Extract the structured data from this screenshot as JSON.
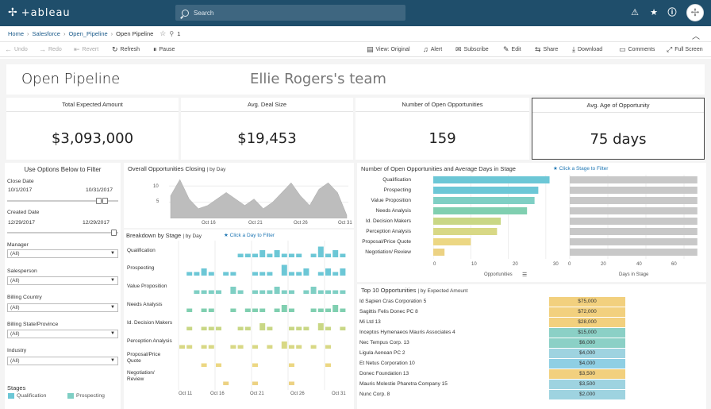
{
  "app": {
    "logo_text": "+ableau"
  },
  "topbar": {
    "search_placeholder": "Search"
  },
  "breadcrumb": {
    "home": "Home",
    "project": "Salesforce",
    "workbook": "Open_Pipeline",
    "view": "Open Pipeline",
    "fav_count": "1"
  },
  "toolbar": {
    "undo": "Undo",
    "redo": "Redo",
    "revert": "Revert",
    "refresh": "Refresh",
    "pause": "Pause",
    "view": "View: Original",
    "alert": "Alert",
    "subscribe": "Subscribe",
    "edit": "Edit",
    "share": "Share",
    "download": "Download",
    "comments": "Comments",
    "fullscreen": "Full Screen"
  },
  "dashboard": {
    "title": "Open Pipeline",
    "team": "Ellie Rogers's team"
  },
  "kpis": [
    {
      "label": "Total Expected Amount",
      "value": "$3,093,000"
    },
    {
      "label": "Avg. Deal Size",
      "value": "$19,453"
    },
    {
      "label": "Number of Open Opportunities",
      "value": "159"
    },
    {
      "label": "Avg. Age of Opportunity",
      "value": "75 days"
    }
  ],
  "filters": {
    "title": "Use Options Below to Filter",
    "close_date": {
      "label": "Close Date",
      "start": "10/1/2017",
      "end": "10/31/2017"
    },
    "created_date": {
      "label": "Created Date",
      "start": "12/29/2017",
      "end": "12/29/2017"
    },
    "manager": {
      "label": "Manager",
      "value": "(All)"
    },
    "salesperson": {
      "label": "Salesperson",
      "value": "(All)"
    },
    "billing_country": {
      "label": "Billing Country",
      "value": "(All)"
    },
    "billing_state": {
      "label": "Billing State/Province",
      "value": "(All)"
    },
    "industry": {
      "label": "Industry",
      "value": "(All)"
    },
    "stages_label": "Stages",
    "stage_legend": [
      "Qualification",
      "Prospecting"
    ]
  },
  "closing_chart": {
    "title": "Overall Opportunities Closing",
    "by": "| by Day",
    "yticks": [
      "10",
      "5"
    ],
    "xticks": [
      "Oct 16",
      "Oct 21",
      "Oct 26",
      "Oct 31"
    ]
  },
  "breakdown": {
    "title": "Breakdown by Stage",
    "by": "| by Day",
    "hint": "Click a Day to Filter",
    "stages": [
      "Qualification",
      "Prospecting",
      "Value Proposition",
      "Needs Analysis",
      "Id. Decision Makers",
      "Perception Analysis",
      "Proposal/Price Quote",
      "Negotiation/ Review"
    ],
    "xticks": [
      "Oct 11",
      "Oct 16",
      "Oct 21",
      "Oct 26",
      "Oct 31"
    ]
  },
  "stage_chart": {
    "title": "Number of Open Opportunities and Average Days in Stage",
    "hint": "Click a Stage to Filter",
    "opp_axis_label": "Opportunities",
    "days_axis_label": "Days in Stage",
    "opp_ticks": [
      "0",
      "10",
      "20",
      "30"
    ],
    "days_ticks": [
      "0",
      "20",
      "40",
      "60"
    ]
  },
  "top10": {
    "title": "Top 10 Opportunities",
    "by": "| by Expected Amount",
    "rows": [
      {
        "name": "Id Sapien Cras Corporation 5",
        "amount": "$75,000"
      },
      {
        "name": "Sagittis Felis Donec PC 8",
        "amount": "$72,000"
      },
      {
        "name": "Mi Ltd 13",
        "amount": "$28,000"
      },
      {
        "name": "Inceptos Hymenaeos Mauris Associates 4",
        "amount": "$15,000"
      },
      {
        "name": "Nec Tempus Corp. 13",
        "amount": "$6,000"
      },
      {
        "name": "Ligula Aenean PC 2",
        "amount": "$4,000"
      },
      {
        "name": "Et Netus Corporation 10",
        "amount": "$4,000"
      },
      {
        "name": "Donec Foundation 13",
        "amount": "$3,500"
      },
      {
        "name": "Mauris Molestie Pharetra Company 15",
        "amount": "$3,500"
      },
      {
        "name": "Nunc Corp. 8",
        "amount": "$2,000"
      }
    ]
  },
  "chart_data": [
    {
      "type": "area",
      "title": "Overall Opportunities Closing",
      "xlabel": "",
      "ylabel": "",
      "x": [
        "Oct 12",
        "Oct 13",
        "Oct 14",
        "Oct 15",
        "Oct 16",
        "Oct 17",
        "Oct 18",
        "Oct 19",
        "Oct 20",
        "Oct 21",
        "Oct 22",
        "Oct 23",
        "Oct 24",
        "Oct 25",
        "Oct 26",
        "Oct 27",
        "Oct 28",
        "Oct 29",
        "Oct 30",
        "Oct 31"
      ],
      "values": [
        7,
        12,
        6,
        3,
        4,
        6,
        8,
        6,
        4,
        6,
        3,
        5,
        8,
        11,
        7,
        4,
        9,
        11,
        8,
        1
      ],
      "ylim": [
        0,
        13
      ]
    },
    {
      "type": "bar",
      "title": "Number of Open Opportunities and Average Days in Stage",
      "categories": [
        "Qualification",
        "Prospecting",
        "Value Proposition",
        "Needs Analysis",
        "Id. Decision Makers",
        "Perception Analysis",
        "Proposal/Price Quote",
        "Negotiation/ Review"
      ],
      "series": [
        {
          "name": "Opportunities",
          "values": [
            31,
            28,
            27,
            25,
            18,
            17,
            10,
            3
          ],
          "colors": [
            "#6cc7d6",
            "#6cc7d6",
            "#7fcfc4",
            "#80cfb0",
            "#c9d785",
            "#d8d885",
            "#ecd783",
            "#ecd283"
          ]
        },
        {
          "name": "Days in Stage",
          "values": [
            67,
            67,
            67,
            67,
            67,
            67,
            67,
            67
          ]
        }
      ],
      "xlim_opportunities": [
        0,
        33
      ],
      "xlim_days": [
        0,
        70
      ]
    },
    {
      "type": "table",
      "title": "Top 10 Opportunities by Expected Amount",
      "colors": [
        "#f2d07e",
        "#f2d07e",
        "#f2d07e",
        "#8bd0c6",
        "#8bd0c6",
        "#9ed3e0",
        "#8fcfe4",
        "#f2d07e",
        "#9ed3e0",
        "#9ed3e0"
      ]
    }
  ]
}
